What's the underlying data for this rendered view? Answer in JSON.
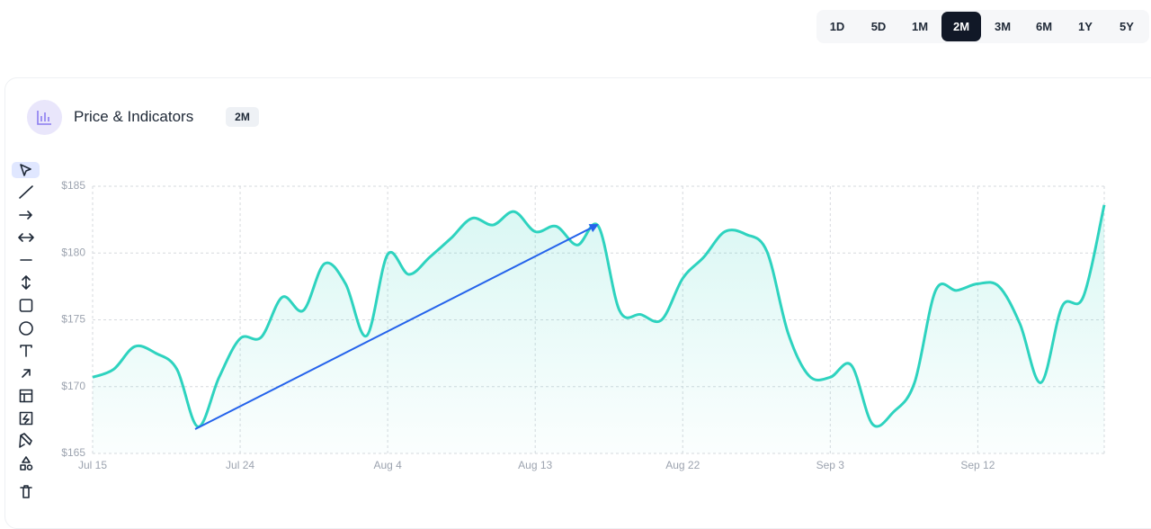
{
  "timeframes": {
    "options": [
      "1D",
      "5D",
      "1M",
      "2M",
      "3M",
      "6M",
      "1Y",
      "5Y"
    ],
    "active": "2M"
  },
  "card": {
    "title": "Price & Indicators",
    "badge": "2M"
  },
  "chart_data": {
    "type": "area",
    "categories": [
      "Jul 15",
      null,
      null,
      null,
      null,
      null,
      null,
      "Jul 24",
      null,
      null,
      null,
      null,
      null,
      null,
      "Aug 4",
      null,
      null,
      null,
      null,
      null,
      null,
      "Aug 13",
      null,
      null,
      null,
      null,
      null,
      null,
      "Aug 22",
      null,
      null,
      null,
      null,
      null,
      null,
      "Sep 3",
      null,
      null,
      null,
      null,
      null,
      null,
      "Sep 12",
      null,
      null,
      null,
      null,
      null,
      null
    ],
    "values": [
      170.7,
      171.3,
      173.0,
      172.5,
      171.3,
      167.0,
      170.7,
      173.6,
      173.7,
      176.7,
      175.7,
      179.2,
      177.7,
      173.8,
      179.9,
      178.4,
      179.7,
      181.1,
      182.6,
      182.1,
      183.1,
      181.6,
      182.0,
      180.6,
      182.0,
      175.7,
      175.4,
      175.0,
      178.1,
      179.7,
      181.6,
      181.4,
      180.1,
      174.0,
      170.8,
      170.7,
      171.6,
      167.2,
      168.1,
      170.3,
      177.2,
      177.2,
      177.7,
      177.5,
      174.7,
      170.3,
      176.0,
      176.7,
      183.6
    ],
    "color": "#2ed3bf",
    "ylim": [
      165,
      185
    ],
    "yticks": [
      {
        "value": 165,
        "label": "$165"
      },
      {
        "value": 170,
        "label": "$170"
      },
      {
        "value": 175,
        "label": "$175"
      },
      {
        "value": 180,
        "label": "$180"
      },
      {
        "value": 185,
        "label": "$185"
      }
    ],
    "grid": true
  }
}
